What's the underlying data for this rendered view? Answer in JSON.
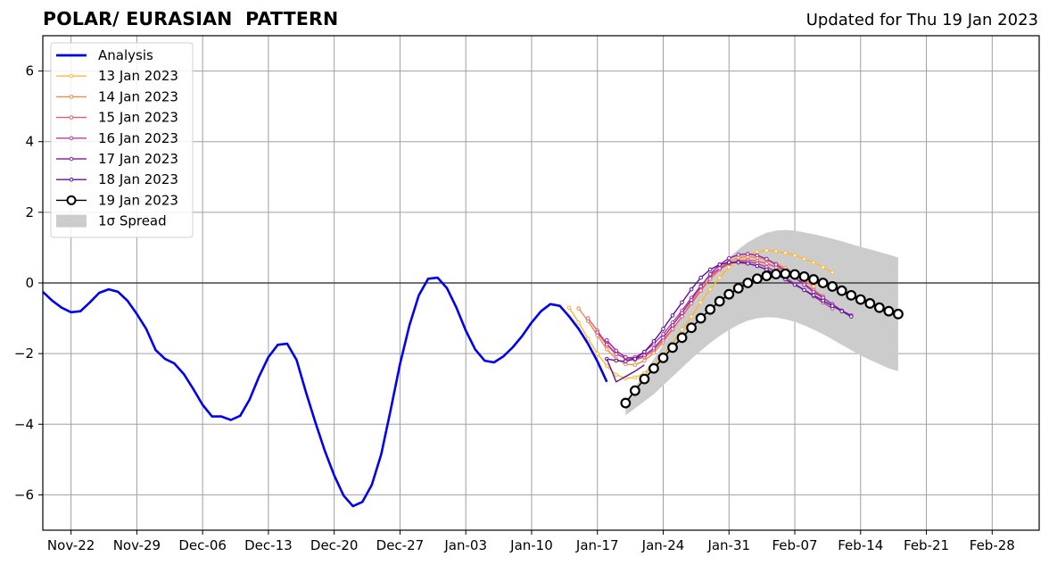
{
  "title": "POLAR/ EURASIAN  PATTERN",
  "subtitle": "Updated for Thu 19 Jan 2023",
  "chart_data": {
    "type": "line",
    "ylim": [
      -7,
      7
    ],
    "yticks": [
      -6,
      -4,
      -2,
      0,
      2,
      4,
      6
    ],
    "ytick_labels": [
      "−6",
      "−4",
      "−2",
      "0",
      "2",
      "4",
      "6"
    ],
    "xlim": [
      "2022-11-19",
      "2023-03-05"
    ],
    "xticks": [
      "2022-11-22",
      "2022-11-29",
      "2022-12-06",
      "2022-12-13",
      "2022-12-20",
      "2022-12-27",
      "2023-01-03",
      "2023-01-10",
      "2023-01-17",
      "2023-01-24",
      "2023-01-31",
      "2023-02-07",
      "2023-02-14",
      "2023-02-21",
      "2023-02-28"
    ],
    "xtick_labels": [
      "Nov-22",
      "Nov-29",
      "Dec-06",
      "Dec-13",
      "Dec-20",
      "Dec-27",
      "Jan-03",
      "Jan-10",
      "Jan-17",
      "Jan-24",
      "Jan-31",
      "Feb-07",
      "Feb-14",
      "Feb-21",
      "Feb-28"
    ],
    "grid": true,
    "legend_position": "upper-left",
    "legend_entries": [
      "Analysis",
      "13 Jan 2023",
      "14 Jan 2023",
      "15 Jan 2023",
      "16 Jan 2023",
      "17 Jan 2023",
      "18 Jan 2023",
      "19 Jan 2023",
      "1σ Spread"
    ],
    "analysis": {
      "name": "Analysis",
      "color": "#0000ee",
      "start": "2022-11-19",
      "values": [
        -0.25,
        -0.5,
        -0.7,
        -0.83,
        -0.8,
        -0.55,
        -0.28,
        -0.18,
        -0.25,
        -0.5,
        -0.88,
        -1.3,
        -1.9,
        -2.15,
        -2.28,
        -2.58,
        -3.0,
        -3.45,
        -3.78,
        -3.78,
        -3.88,
        -3.76,
        -3.3,
        -2.65,
        -2.1,
        -1.75,
        -1.72,
        -2.18,
        -3.1,
        -3.95,
        -4.75,
        -5.45,
        -6.02,
        -6.32,
        -6.2,
        -5.72,
        -4.85,
        -3.6,
        -2.3,
        -1.2,
        -0.35,
        0.12,
        0.15,
        -0.15,
        -0.7,
        -1.35,
        -1.88,
        -2.2,
        -2.25,
        -2.08,
        -1.82,
        -1.5,
        -1.12,
        -0.8,
        -0.6,
        -0.65,
        -0.95,
        -1.3,
        -1.72,
        -2.22,
        -2.8
      ]
    },
    "forecasts": [
      {
        "name": "13 Jan 2023",
        "color": "#ffb733",
        "start": "2023-01-14",
        "values": [
          -0.7,
          -1.12,
          -1.58,
          -2.0,
          -2.35,
          -2.6,
          -2.7,
          -2.68,
          -2.55,
          -2.35,
          -2.05,
          -1.7,
          -1.32,
          -0.95,
          -0.55,
          -0.18,
          0.15,
          0.45,
          0.65,
          0.8,
          0.88,
          0.92,
          0.9,
          0.85,
          0.78,
          0.68,
          0.58,
          0.45,
          0.3
        ]
      },
      {
        "name": "14 Jan 2023",
        "color": "#f58a42",
        "start": "2023-01-15",
        "values": [
          -0.72,
          -1.08,
          -1.48,
          -1.88,
          -2.15,
          -2.3,
          -2.32,
          -2.2,
          -1.98,
          -1.68,
          -1.32,
          -0.95,
          -0.55,
          -0.18,
          0.15,
          0.42,
          0.6,
          0.72,
          0.75,
          0.72,
          0.65,
          0.55,
          0.42,
          0.25,
          0.08,
          -0.1
        ]
      },
      {
        "name": "15 Jan 2023",
        "color": "#e05f6e",
        "start": "2023-01-16",
        "values": [
          -1.0,
          -1.35,
          -1.72,
          -2.0,
          -2.15,
          -2.18,
          -2.1,
          -1.9,
          -1.62,
          -1.3,
          -0.95,
          -0.58,
          -0.22,
          0.12,
          0.38,
          0.55,
          0.63,
          0.65,
          0.62,
          0.55,
          0.45,
          0.32,
          0.15,
          -0.02,
          -0.2,
          -0.38
        ]
      },
      {
        "name": "16 Jan 2023",
        "color": "#b83c99",
        "start": "2023-01-17",
        "values": [
          -1.4,
          -1.75,
          -2.02,
          -2.12,
          -2.1,
          -1.95,
          -1.72,
          -1.45,
          -1.12,
          -0.78,
          -0.42,
          -0.08,
          0.22,
          0.42,
          0.55,
          0.6,
          0.6,
          0.55,
          0.45,
          0.32,
          0.16,
          -0.02,
          -0.2,
          -0.38,
          -0.55,
          -0.72
        ]
      },
      {
        "name": "17 Jan 2023",
        "color": "#9424aa",
        "start": "2023-01-18",
        "values": [
          -1.62,
          -1.92,
          -2.1,
          -2.15,
          -2.05,
          -1.85,
          -1.55,
          -1.2,
          -0.85,
          -0.48,
          -0.1,
          0.25,
          0.52,
          0.7,
          0.8,
          0.82,
          0.78,
          0.68,
          0.52,
          0.35,
          0.15,
          -0.05,
          -0.25,
          -0.42,
          -0.6,
          -0.78,
          -0.92
        ]
      },
      {
        "name": "18 Jan 2023",
        "color": "#5a10a0",
        "start": "2023-01-18",
        "values": [
          -2.15,
          -2.2,
          -2.22,
          -2.15,
          -1.95,
          -1.65,
          -1.3,
          -0.92,
          -0.55,
          -0.18,
          0.15,
          0.38,
          0.52,
          0.58,
          0.58,
          0.55,
          0.48,
          0.38,
          0.25,
          0.1,
          -0.05,
          -0.2,
          -0.35,
          -0.5,
          -0.65,
          -0.8,
          -0.95
        ]
      }
    ],
    "connector_18jan": [
      -2.8,
      -2.65,
      -2.5,
      -2.32
    ],
    "latest": {
      "name": "19 Jan 2023",
      "color": "#000000",
      "start": "2023-01-20",
      "values": [
        -3.4,
        -3.05,
        -2.72,
        -2.42,
        -2.12,
        -1.83,
        -1.55,
        -1.27,
        -1.0,
        -0.75,
        -0.52,
        -0.32,
        -0.15,
        0.0,
        0.12,
        0.2,
        0.25,
        0.26,
        0.24,
        0.18,
        0.1,
        0.0,
        -0.1,
        -0.22,
        -0.35,
        -0.47,
        -0.58,
        -0.7,
        -0.8,
        -0.88
      ]
    },
    "spread": {
      "name": "1σ Spread",
      "color": "#cccccc",
      "start": "2023-01-20",
      "upper": [
        -3.35,
        -2.95,
        -2.55,
        -2.15,
        -1.75,
        -1.35,
        -0.95,
        -0.55,
        -0.18,
        0.15,
        0.45,
        0.72,
        0.95,
        1.15,
        1.3,
        1.42,
        1.48,
        1.5,
        1.48,
        1.43,
        1.38,
        1.32,
        1.25,
        1.18,
        1.1,
        1.02,
        0.95,
        0.88,
        0.8,
        0.72
      ],
      "lower": [
        -3.75,
        -3.55,
        -3.35,
        -3.15,
        -2.9,
        -2.65,
        -2.4,
        -2.15,
        -1.92,
        -1.7,
        -1.5,
        -1.33,
        -1.18,
        -1.07,
        -1.0,
        -0.97,
        -0.98,
        -1.03,
        -1.1,
        -1.2,
        -1.32,
        -1.45,
        -1.6,
        -1.75,
        -1.9,
        -2.05,
        -2.18,
        -2.3,
        -2.42,
        -2.5
      ]
    }
  }
}
